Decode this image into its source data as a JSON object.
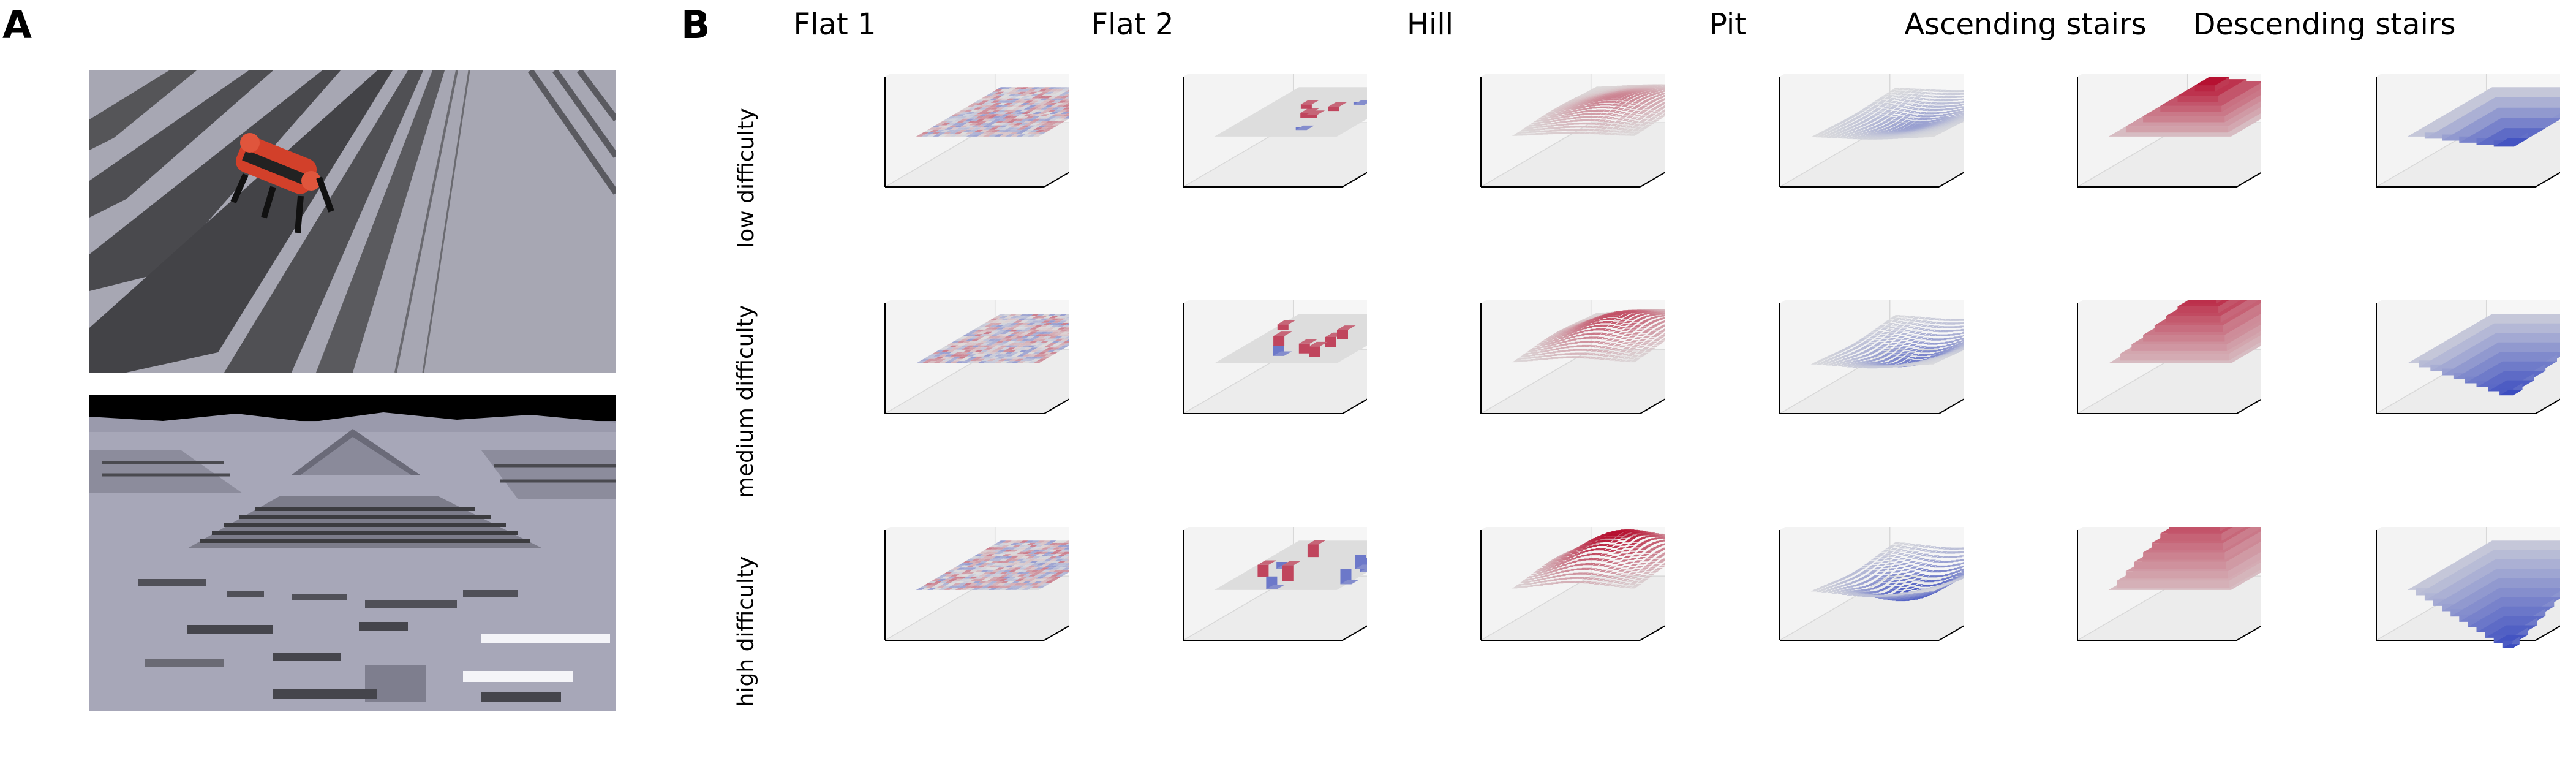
{
  "panels": {
    "a": "A",
    "b": "B"
  },
  "columns": [
    {
      "title": "Flat 1",
      "terrain": "flat_noise"
    },
    {
      "title": "Flat 2",
      "terrain": "flat_blocks"
    },
    {
      "title": "Hill",
      "terrain": "hill"
    },
    {
      "title": "Pit",
      "terrain": "pit"
    },
    {
      "title": "Ascending stairs",
      "terrain": "ascending_stairs"
    },
    {
      "title": "Descending stairs",
      "terrain": "descending_stairs"
    }
  ],
  "rows": [
    {
      "label": "low difficulty",
      "level": 1
    },
    {
      "label": "medium difficulty",
      "level": 2
    },
    {
      "label": "high difficulty",
      "level": 3
    }
  ],
  "colors": {
    "high": "#b40426",
    "low": "#3b4cc0",
    "mid": "#dddddd",
    "pane": "#f3f3f3",
    "photo_ground": "#a8a8b6",
    "photo_sky": "#000000"
  }
}
